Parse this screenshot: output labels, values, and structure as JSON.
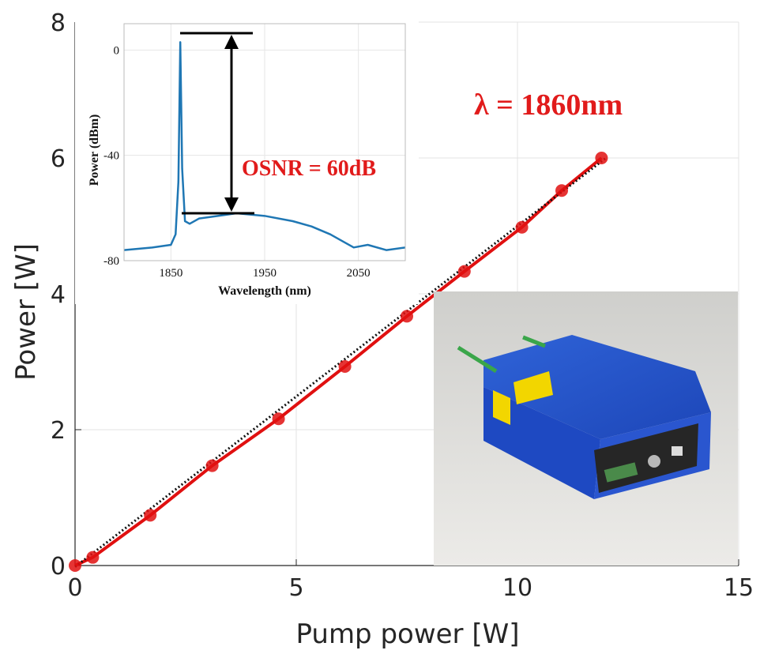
{
  "chart_data": [
    {
      "type": "line",
      "xlabel": "Pump power [W]",
      "ylabel": "Power [W]",
      "xlim": [
        0,
        15
      ],
      "ylim": [
        0,
        8
      ],
      "xticks": [
        "0",
        "5",
        "10",
        "15"
      ],
      "yticks": [
        "0",
        "2",
        "4",
        "6",
        "8"
      ],
      "grid": true,
      "annotation": "λ = 1860nm",
      "series": [
        {
          "color": "#e01010",
          "style": "line-with-markers",
          "x": [
            0.0,
            0.4,
            1.7,
            3.1,
            4.6,
            6.1,
            7.5,
            8.8,
            10.1,
            11.0,
            11.9
          ],
          "y": [
            0.0,
            0.12,
            0.74,
            1.47,
            2.16,
            2.93,
            3.67,
            4.33,
            4.98,
            5.52,
            6.0
          ]
        },
        {
          "color": "#111111",
          "style": "dotted-fit",
          "x": [
            0.0,
            12.0
          ],
          "y": [
            -0.02,
            6.0
          ]
        }
      ]
    },
    {
      "type": "line",
      "xlabel": "Wavelength (nm)",
      "ylabel": "Power (dBm)",
      "xlim": [
        1800,
        2100
      ],
      "ylim": [
        -80,
        10
      ],
      "xticks": [
        "1850",
        "1950",
        "2050"
      ],
      "yticks": [
        "0",
        "-40",
        "-80"
      ],
      "grid": true,
      "annotation": "OSNR = 60dB",
      "series": [
        {
          "color": "#1f77b4",
          "x": [
            1800,
            1830,
            1850,
            1855,
            1858,
            1860,
            1862,
            1865,
            1870,
            1880,
            1900,
            1920,
            1950,
            1980,
            2000,
            2020,
            2035,
            2045,
            2060,
            2080,
            2100
          ],
          "y": [
            -76,
            -75,
            -74,
            -70,
            -50,
            3,
            -45,
            -65,
            -66,
            -64,
            -63,
            -62,
            -63,
            -65,
            -67,
            -70,
            -73,
            -75,
            -74,
            -76,
            -75
          ]
        }
      ]
    }
  ]
}
